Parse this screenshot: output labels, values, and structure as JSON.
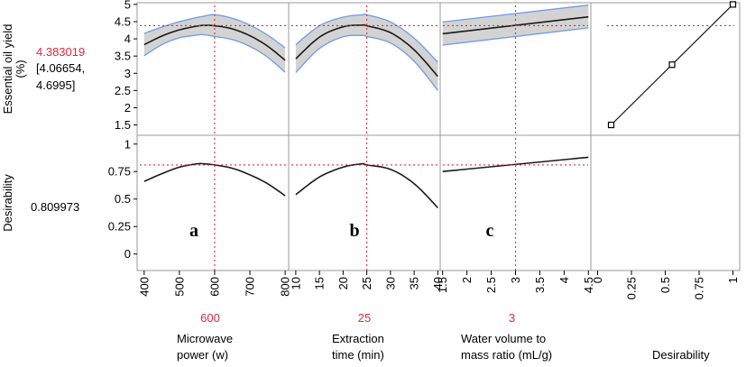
{
  "chart_data": {
    "type": "prediction-profiler",
    "responses": [
      {
        "key": "yield",
        "label_lines": [
          "Essential oil yield",
          "(%)"
        ],
        "value_text": "4.383019",
        "ci_text_lines": [
          "[4.06654,",
          "4.6995]"
        ],
        "ylim": [
          1.2,
          5.05
        ],
        "ticks": [
          "1.5",
          "2",
          "2.5",
          "3",
          "3.5",
          "4",
          "4.5",
          "5"
        ],
        "ref_value": 4.383
      },
      {
        "key": "desirability",
        "label_lines": [
          "Desirability"
        ],
        "value_text": "0.809973",
        "ylim": [
          -0.15,
          1.08
        ],
        "ticks": [
          "0",
          "0.25",
          "0.5",
          "0.75",
          "1"
        ],
        "ref_value": 0.81
      }
    ],
    "factors": [
      {
        "key": "power",
        "label_lines": [
          "Microwave",
          "power (w)"
        ],
        "current_text": "600",
        "current": 600,
        "xlim": [
          380,
          810
        ],
        "ticks": [
          "400",
          "500",
          "600",
          "700",
          "800"
        ],
        "letter": "a",
        "yield_curve": {
          "x": [
            400,
            450,
            500,
            550,
            570,
            600,
            650,
            700,
            750,
            800
          ],
          "y": [
            3.83,
            4.08,
            4.26,
            4.37,
            4.39,
            4.38,
            4.29,
            4.09,
            3.79,
            3.38
          ]
        },
        "yield_lower": [
          3.51,
          3.83,
          4.03,
          4.11,
          4.12,
          4.07,
          3.98,
          3.78,
          3.47,
          3.03
        ],
        "yield_upper": [
          4.16,
          4.34,
          4.5,
          4.62,
          4.66,
          4.7,
          4.6,
          4.4,
          4.11,
          3.74
        ],
        "desir_curve": {
          "x": [
            400,
            450,
            500,
            550,
            570,
            600,
            650,
            700,
            750,
            800
          ],
          "y": [
            0.66,
            0.73,
            0.79,
            0.82,
            0.82,
            0.81,
            0.78,
            0.72,
            0.64,
            0.53
          ]
        }
      },
      {
        "key": "time",
        "label_lines": [
          "Extraction",
          "time (min)"
        ],
        "current_text": "25",
        "current": 25,
        "xlim": [
          8.5,
          40.5
        ],
        "ticks": [
          "10",
          "15",
          "20",
          "25",
          "30",
          "35",
          "40"
        ],
        "letter": "b",
        "yield_curve": {
          "x": [
            10,
            15,
            20,
            24,
            25,
            30,
            35,
            40
          ],
          "y": [
            3.42,
            4.05,
            4.35,
            4.4,
            4.38,
            4.18,
            3.68,
            2.91
          ]
        },
        "yield_lower": [
          3.02,
          3.72,
          4.06,
          4.1,
          4.07,
          3.88,
          3.35,
          2.5
        ],
        "yield_upper": [
          3.83,
          4.38,
          4.63,
          4.7,
          4.7,
          4.49,
          4.02,
          3.32
        ],
        "desir_curve": {
          "x": [
            10,
            15,
            20,
            24,
            25,
            30,
            35,
            40
          ],
          "y": [
            0.54,
            0.7,
            0.79,
            0.82,
            0.81,
            0.77,
            0.64,
            0.42
          ]
        }
      },
      {
        "key": "ratio",
        "label_lines": [
          "Water volume to",
          "mass  ratio (mL/g)"
        ],
        "current_text": "3",
        "current": 3,
        "xlim": [
          1.45,
          4.55
        ],
        "ticks": [
          "1.5",
          "2",
          "2.5",
          "3",
          "3.5",
          "4",
          "4.5"
        ],
        "letter": "c",
        "yield_curve": {
          "x": [
            1.5,
            4.5
          ],
          "y": [
            4.15,
            4.64
          ]
        },
        "yield_lower": [
          3.82,
          4.32
        ],
        "yield_upper": [
          4.49,
          4.98
        ],
        "desir_curve": {
          "x": [
            1.5,
            4.5
          ],
          "y": [
            0.75,
            0.88
          ]
        }
      },
      {
        "key": "desirability",
        "label_lines": [
          "Desirability"
        ],
        "xlim": [
          -0.05,
          1.05
        ],
        "ticks": [
          "0",
          "0.25",
          "0.5",
          "0.75",
          "1"
        ],
        "desirability_fn": {
          "x": [
            0.1,
            0.55,
            1.0
          ],
          "y": [
            1.5,
            3.25,
            5.0
          ]
        }
      }
    ],
    "colors": {
      "curve": "#1a1a1a",
      "ci_fill": "#d3d3d3",
      "ci_edge": "#6f9be6",
      "reference": "#e0283c",
      "frame": "#9a9a9a"
    }
  }
}
